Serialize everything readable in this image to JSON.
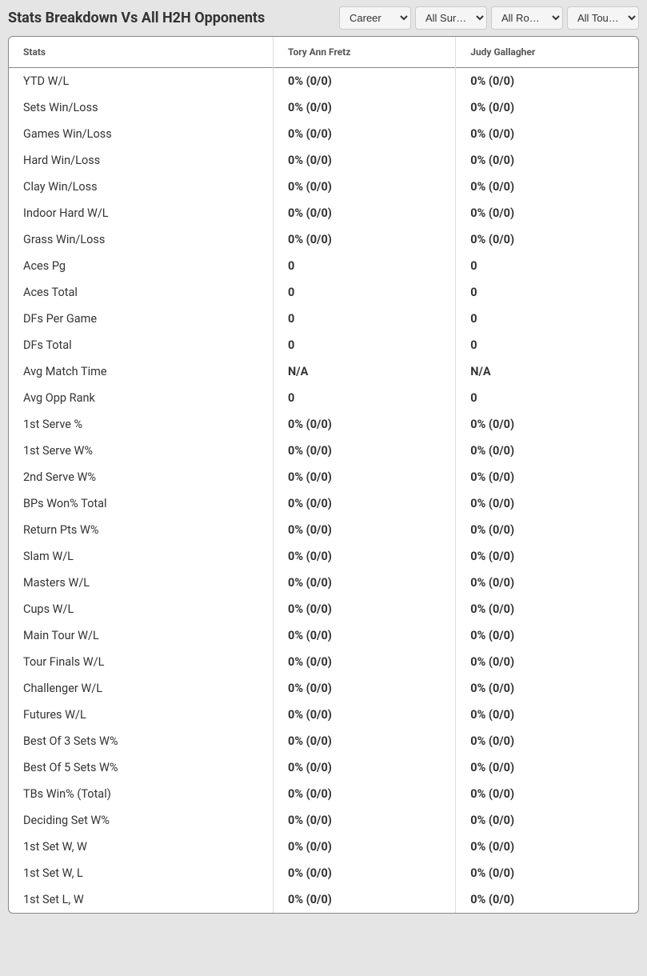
{
  "header": {
    "title": "Stats Breakdown Vs All H2H Opponents"
  },
  "filters": {
    "career": {
      "selected": "Career"
    },
    "surface": {
      "selected": "All Surf…"
    },
    "round": {
      "selected": "All Rou…"
    },
    "tour": {
      "selected": "All Tour…"
    }
  },
  "table": {
    "columns": [
      "Stats",
      "Tory Ann Fretz",
      "Judy Gallagher"
    ],
    "rows": [
      [
        "YTD W/L",
        "0% (0/0)",
        "0% (0/0)"
      ],
      [
        "Sets Win/Loss",
        "0% (0/0)",
        "0% (0/0)"
      ],
      [
        "Games Win/Loss",
        "0% (0/0)",
        "0% (0/0)"
      ],
      [
        "Hard Win/Loss",
        "0% (0/0)",
        "0% (0/0)"
      ],
      [
        "Clay Win/Loss",
        "0% (0/0)",
        "0% (0/0)"
      ],
      [
        "Indoor Hard W/L",
        "0% (0/0)",
        "0% (0/0)"
      ],
      [
        "Grass Win/Loss",
        "0% (0/0)",
        "0% (0/0)"
      ],
      [
        "Aces Pg",
        "0",
        "0"
      ],
      [
        "Aces Total",
        "0",
        "0"
      ],
      [
        "DFs Per Game",
        "0",
        "0"
      ],
      [
        "DFs Total",
        "0",
        "0"
      ],
      [
        "Avg Match Time",
        "N/A",
        "N/A"
      ],
      [
        "Avg Opp Rank",
        "0",
        "0"
      ],
      [
        "1st Serve %",
        "0% (0/0)",
        "0% (0/0)"
      ],
      [
        "1st Serve W%",
        "0% (0/0)",
        "0% (0/0)"
      ],
      [
        "2nd Serve W%",
        "0% (0/0)",
        "0% (0/0)"
      ],
      [
        "BPs Won% Total",
        "0% (0/0)",
        "0% (0/0)"
      ],
      [
        "Return Pts W%",
        "0% (0/0)",
        "0% (0/0)"
      ],
      [
        "Slam W/L",
        "0% (0/0)",
        "0% (0/0)"
      ],
      [
        "Masters W/L",
        "0% (0/0)",
        "0% (0/0)"
      ],
      [
        "Cups W/L",
        "0% (0/0)",
        "0% (0/0)"
      ],
      [
        "Main Tour W/L",
        "0% (0/0)",
        "0% (0/0)"
      ],
      [
        "Tour Finals W/L",
        "0% (0/0)",
        "0% (0/0)"
      ],
      [
        "Challenger W/L",
        "0% (0/0)",
        "0% (0/0)"
      ],
      [
        "Futures W/L",
        "0% (0/0)",
        "0% (0/0)"
      ],
      [
        "Best Of 3 Sets W%",
        "0% (0/0)",
        "0% (0/0)"
      ],
      [
        "Best Of 5 Sets W%",
        "0% (0/0)",
        "0% (0/0)"
      ],
      [
        "TBs Win% (Total)",
        "0% (0/0)",
        "0% (0/0)"
      ],
      [
        "Deciding Set W%",
        "0% (0/0)",
        "0% (0/0)"
      ],
      [
        "1st Set W, W",
        "0% (0/0)",
        "0% (0/0)"
      ],
      [
        "1st Set W, L",
        "0% (0/0)",
        "0% (0/0)"
      ],
      [
        "1st Set L, W",
        "0% (0/0)",
        "0% (0/0)"
      ]
    ]
  },
  "styling": {
    "background_color": "#e5e5e5",
    "table_background": "#ffffff",
    "border_color": "#888888",
    "cell_border_color": "#dddddd",
    "text_color": "#333333",
    "header_text_color": "#555555",
    "title_fontsize": 18,
    "header_fontsize": 12,
    "cell_fontsize": 14.5,
    "column_widths_pct": [
      42,
      29,
      29
    ]
  }
}
